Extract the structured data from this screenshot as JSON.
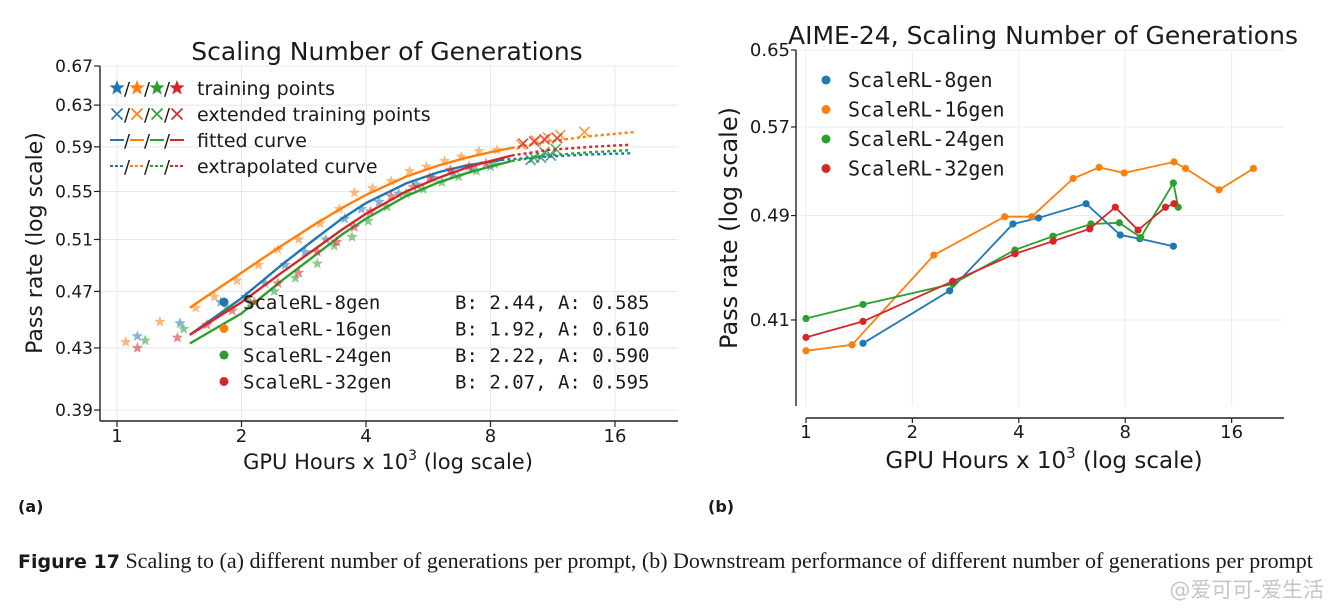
{
  "colors": {
    "blue": "#1f77b4",
    "orange": "#ff7f0e",
    "green": "#2ca02c",
    "red": "#d62728"
  },
  "chart_data": [
    {
      "panel": "(a)",
      "type": "line",
      "title": "Scaling Number of Generations",
      "xlabel_main": "GPU Hours x 10",
      "xlabel_sup": "3",
      "xlabel_tail": " (log scale)",
      "ylabel": "Pass rate (log scale)",
      "xscale": "log2",
      "yscale": "log",
      "xlim": [
        0.87,
        22
      ],
      "ylim": [
        0.39,
        0.67
      ],
      "xticks": [
        1,
        2,
        4,
        8,
        16
      ],
      "xtick_labels": [
        "1",
        "2",
        "4",
        "8",
        "16"
      ],
      "yticks": [
        0.39,
        0.43,
        0.47,
        0.51,
        0.55,
        0.59,
        0.63,
        0.67
      ],
      "ytick_labels": [
        "0.39",
        "0.43",
        "0.47",
        "0.51",
        "0.55",
        "0.59",
        "0.63",
        "0.67"
      ],
      "legend_top": [
        {
          "symbol": "star",
          "label": "training points"
        },
        {
          "symbol": "cross",
          "label": "extended training points"
        },
        {
          "symbol": "solid",
          "label": "fitted curve"
        },
        {
          "symbol": "dashed",
          "label": "extrapolated curve"
        }
      ],
      "legend_bottom": [
        {
          "name": "ScaleRL-8gen",
          "params": "B: 2.44, A: 0.585",
          "color": "#1f77b4"
        },
        {
          "name": "ScaleRL-16gen",
          "params": "B: 1.92, A: 0.610",
          "color": "#ff7f0e"
        },
        {
          "name": "ScaleRL-24gen",
          "params": "B: 2.22, A: 0.590",
          "color": "#2ca02c"
        },
        {
          "name": "ScaleRL-32gen",
          "params": "B: 2.07, A: 0.595",
          "color": "#d62728"
        }
      ],
      "series": [
        {
          "name": "ScaleRL-8gen",
          "color": "#1f77b4",
          "fit": [
            [
              1.5,
              0.439
            ],
            [
              2,
              0.465
            ],
            [
              2.5,
              0.49
            ],
            [
              3,
              0.51
            ],
            [
              3.5,
              0.527
            ],
            [
              4,
              0.54
            ],
            [
              5,
              0.557
            ],
            [
              6,
              0.567
            ],
            [
              7,
              0.573
            ],
            [
              8.5,
              0.578
            ]
          ],
          "extrap": [
            [
              8.5,
              0.578
            ],
            [
              11,
              0.581
            ],
            [
              14,
              0.583
            ],
            [
              17.5,
              0.584
            ]
          ],
          "training": [
            [
              1.12,
              0.438
            ],
            [
              1.42,
              0.447
            ],
            [
              1.78,
              0.462
            ],
            [
              2.05,
              0.466
            ],
            [
              2.28,
              0.476
            ],
            [
              2.55,
              0.49
            ],
            [
              2.85,
              0.5
            ],
            [
              3.2,
              0.51
            ],
            [
              3.55,
              0.527
            ],
            [
              3.9,
              0.535
            ],
            [
              4.3,
              0.541
            ],
            [
              4.8,
              0.548
            ],
            [
              5.3,
              0.556
            ],
            [
              5.8,
              0.562
            ],
            [
              6.5,
              0.566
            ],
            [
              7.2,
              0.57
            ],
            [
              8,
              0.572
            ]
          ],
          "extended": [
            [
              10,
              0.578
            ],
            [
              10.6,
              0.58
            ],
            [
              11.2,
              0.582
            ]
          ]
        },
        {
          "name": "ScaleRL-16gen",
          "color": "#ff7f0e",
          "fit": [
            [
              1.5,
              0.458
            ],
            [
              2,
              0.484
            ],
            [
              2.5,
              0.505
            ],
            [
              3,
              0.522
            ],
            [
              3.5,
              0.536
            ],
            [
              4,
              0.547
            ],
            [
              5,
              0.563
            ],
            [
              6,
              0.573
            ],
            [
              7,
              0.58
            ],
            [
              8,
              0.585
            ],
            [
              9,
              0.589
            ]
          ],
          "extrap": [
            [
              9,
              0.589
            ],
            [
              11,
              0.595
            ],
            [
              14,
              0.6
            ],
            [
              18,
              0.604
            ]
          ],
          "training": [
            [
              1.05,
              0.434
            ],
            [
              1.27,
              0.448
            ],
            [
              1.55,
              0.458
            ],
            [
              1.72,
              0.466
            ],
            [
              1.95,
              0.478
            ],
            [
              2.2,
              0.49
            ],
            [
              2.45,
              0.502
            ],
            [
              2.75,
              0.51
            ],
            [
              3.1,
              0.523
            ],
            [
              3.45,
              0.535
            ],
            [
              3.75,
              0.549
            ],
            [
              4.15,
              0.553
            ],
            [
              4.6,
              0.559
            ],
            [
              5.1,
              0.568
            ],
            [
              5.6,
              0.572
            ],
            [
              6.2,
              0.577
            ],
            [
              6.8,
              0.581
            ],
            [
              7.5,
              0.586
            ],
            [
              8.3,
              0.587
            ]
          ],
          "extended": [
            [
              9.5,
              0.592
            ],
            [
              10.3,
              0.596
            ],
            [
              11,
              0.599
            ],
            [
              11.8,
              0.601
            ],
            [
              13.5,
              0.604
            ]
          ]
        },
        {
          "name": "ScaleRL-24gen",
          "color": "#2ca02c",
          "fit": [
            [
              1.5,
              0.433
            ],
            [
              2,
              0.454
            ],
            [
              2.5,
              0.478
            ],
            [
              3,
              0.497
            ],
            [
              3.5,
              0.514
            ],
            [
              4,
              0.527
            ],
            [
              5,
              0.546
            ],
            [
              6,
              0.558
            ],
            [
              7,
              0.566
            ],
            [
              8,
              0.572
            ],
            [
              9,
              0.577
            ]
          ],
          "extrap": [
            [
              9,
              0.577
            ],
            [
              11,
              0.582
            ],
            [
              14,
              0.585
            ],
            [
              17.5,
              0.587
            ]
          ],
          "training": [
            [
              1.17,
              0.435
            ],
            [
              1.45,
              0.443
            ],
            [
              1.85,
              0.458
            ],
            [
              2.1,
              0.462
            ],
            [
              2.4,
              0.47
            ],
            [
              2.7,
              0.48
            ],
            [
              3.05,
              0.491
            ],
            [
              3.35,
              0.505
            ],
            [
              3.7,
              0.512
            ],
            [
              4.05,
              0.525
            ],
            [
              4.5,
              0.537
            ],
            [
              5,
              0.548
            ],
            [
              5.5,
              0.552
            ],
            [
              6.1,
              0.558
            ],
            [
              6.7,
              0.563
            ],
            [
              7.4,
              0.568
            ],
            [
              8.2,
              0.574
            ]
          ],
          "extended": [
            [
              10.2,
              0.58
            ],
            [
              10.8,
              0.585
            ],
            [
              11.5,
              0.588
            ]
          ]
        },
        {
          "name": "ScaleRL-32gen",
          "color": "#d62728",
          "fit": [
            [
              1.5,
              0.439
            ],
            [
              2,
              0.462
            ],
            [
              2.5,
              0.484
            ],
            [
              3,
              0.502
            ],
            [
              3.5,
              0.518
            ],
            [
              4,
              0.531
            ],
            [
              5,
              0.55
            ],
            [
              6,
              0.562
            ],
            [
              7,
              0.571
            ],
            [
              8,
              0.577
            ],
            [
              9,
              0.582
            ]
          ],
          "extrap": [
            [
              9,
              0.582
            ],
            [
              11,
              0.587
            ],
            [
              14,
              0.59
            ],
            [
              17.5,
              0.592
            ]
          ],
          "training": [
            [
              1.12,
              0.43
            ],
            [
              1.4,
              0.437
            ],
            [
              1.65,
              0.446
            ],
            [
              1.9,
              0.456
            ],
            [
              2.15,
              0.462
            ],
            [
              2.45,
              0.476
            ],
            [
              2.75,
              0.484
            ],
            [
              3.05,
              0.5
            ],
            [
              3.4,
              0.508
            ],
            [
              3.75,
              0.52
            ],
            [
              4.1,
              0.533
            ],
            [
              4.6,
              0.546
            ],
            [
              5.2,
              0.554
            ],
            [
              5.7,
              0.562
            ],
            [
              6.4,
              0.569
            ],
            [
              7.1,
              0.572
            ],
            [
              7.8,
              0.575
            ]
          ],
          "extended": [
            [
              9.6,
              0.593
            ],
            [
              10.2,
              0.595
            ],
            [
              10.8,
              0.597
            ],
            [
              11.6,
              0.598
            ]
          ]
        }
      ]
    },
    {
      "panel": "(b)",
      "type": "line",
      "title": "AIME-24, Scaling Number of Generations",
      "xlabel_main": "GPU Hours x 10",
      "xlabel_sup": "3",
      "xlabel_tail": " (log scale)",
      "ylabel": "Pass rate (log scale)",
      "xscale": "log2",
      "yscale": "log",
      "xlim": [
        1,
        21
      ],
      "ylim": [
        0.354,
        0.65
      ],
      "xticks": [
        1,
        2,
        4,
        8,
        16
      ],
      "xtick_labels": [
        "1",
        "2",
        "4",
        "8",
        "16"
      ],
      "yticks": [
        0.41,
        0.49,
        0.57,
        0.65
      ],
      "ytick_labels": [
        "0.41",
        "0.49",
        "0.57",
        "0.65"
      ],
      "series": [
        {
          "name": "ScaleRL-8gen",
          "color": "#1f77b4",
          "points": [
            [
              1.45,
              0.394
            ],
            [
              2.55,
              0.431
            ],
            [
              3.85,
              0.483
            ],
            [
              4.55,
              0.488
            ],
            [
              6.2,
              0.5
            ],
            [
              7.75,
              0.474
            ],
            [
              8.8,
              0.471
            ],
            [
              10.95,
              0.465
            ]
          ]
        },
        {
          "name": "ScaleRL-16gen",
          "color": "#ff7f0e",
          "points": [
            [
              1,
              0.389
            ],
            [
              1.35,
              0.393
            ],
            [
              2.3,
              0.458
            ],
            [
              3.65,
              0.489
            ],
            [
              4.35,
              0.489
            ],
            [
              5.7,
              0.522
            ],
            [
              6.75,
              0.532
            ],
            [
              7.95,
              0.527
            ],
            [
              11,
              0.537
            ],
            [
              11.85,
              0.531
            ],
            [
              14.75,
              0.512
            ],
            [
              18.45,
              0.531
            ]
          ]
        },
        {
          "name": "ScaleRL-24gen",
          "color": "#2ca02c",
          "points": [
            [
              1,
              0.411
            ],
            [
              1.45,
              0.421
            ],
            [
              2.6,
              0.436
            ],
            [
              3.9,
              0.462
            ],
            [
              5,
              0.473
            ],
            [
              6.4,
              0.483
            ],
            [
              7.7,
              0.484
            ],
            [
              8.85,
              0.472
            ],
            [
              10.95,
              0.518
            ],
            [
              11.3,
              0.497
            ]
          ]
        },
        {
          "name": "ScaleRL-32gen",
          "color": "#d62728",
          "points": [
            [
              1,
              0.398
            ],
            [
              1.45,
              0.409
            ],
            [
              2.6,
              0.438
            ],
            [
              3.9,
              0.459
            ],
            [
              5,
              0.469
            ],
            [
              6.35,
              0.479
            ],
            [
              7.5,
              0.497
            ],
            [
              8.7,
              0.478
            ],
            [
              10.4,
              0.497
            ],
            [
              11,
              0.5
            ]
          ]
        }
      ]
    }
  ],
  "panel_labels": {
    "a": "(a)",
    "b": "(b)"
  },
  "caption": {
    "figure_label": "Figure 17",
    "text": "Scaling to (a) different number of generations per prompt, (b) Downstream performance of different number of generations per prompt"
  },
  "watermark": "@爱可可-爱生活"
}
